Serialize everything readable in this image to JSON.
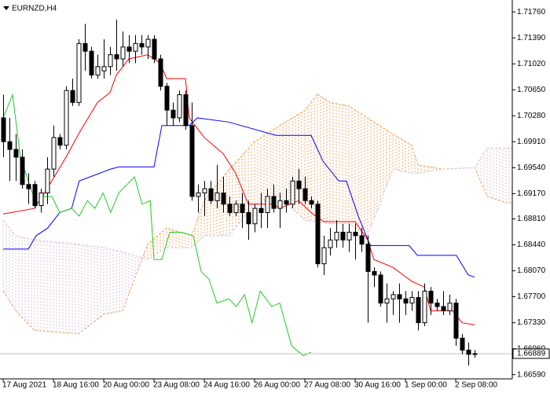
{
  "chart_data": {
    "type": "candlestick",
    "title": "EURNZD,H4",
    "ylim": [
      1.6653,
      1.7193
    ],
    "yticks": [
      {
        "value": 1.7176,
        "label": "1.71760"
      },
      {
        "value": 1.7139,
        "label": "1.71390"
      },
      {
        "value": 1.7102,
        "label": "1.71020"
      },
      {
        "value": 1.7065,
        "label": "1.70650"
      },
      {
        "value": 1.7028,
        "label": "1.70280"
      },
      {
        "value": 1.6991,
        "label": "1.69910"
      },
      {
        "value": 1.6954,
        "label": "1.69540"
      },
      {
        "value": 1.6917,
        "label": "1.69170"
      },
      {
        "value": 1.6881,
        "label": "1.68810"
      },
      {
        "value": 1.6844,
        "label": "1.68440"
      },
      {
        "value": 1.6807,
        "label": "1.68070"
      },
      {
        "value": 1.677,
        "label": "1.67700"
      },
      {
        "value": 1.6733,
        "label": "1.67330"
      },
      {
        "value": 1.6696,
        "label": "1.66960"
      },
      {
        "value": 1.6659,
        "label": "1.66590"
      }
    ],
    "xticks": [
      {
        "value": 0,
        "label": "17 Aug 2021"
      },
      {
        "value": 8,
        "label": "18 Aug 16:00"
      },
      {
        "value": 16,
        "label": "20 Aug 00:00"
      },
      {
        "value": 24,
        "label": "23 Aug 08:00"
      },
      {
        "value": 32,
        "label": "24 Aug 16:00"
      },
      {
        "value": 40,
        "label": "26 Aug 00:00"
      },
      {
        "value": 48,
        "label": "27 Aug 08:00"
      },
      {
        "value": 56,
        "label": "30 Aug 16:00"
      },
      {
        "value": 64,
        "label": "1 Sep 00:00"
      },
      {
        "value": 72,
        "label": "2 Sep 08:00"
      }
    ],
    "last_price": 1.66889,
    "candles": {
      "bull_color": "#ffffff",
      "bear_color": "#000000",
      "edge_color": "#000000",
      "open": [
        1.7025,
        1.6991,
        1.698,
        1.6969,
        1.693,
        1.693,
        1.69,
        1.6918,
        1.6952,
        1.6997,
        1.6986,
        1.7064,
        1.7047,
        1.7131,
        1.712,
        1.7086,
        1.7092,
        1.7098,
        1.7115,
        1.7109,
        1.7126,
        1.712,
        1.7131,
        1.7126,
        1.7137,
        1.7109,
        1.707,
        1.7036,
        1.7025,
        1.7058,
        1.7014,
        1.6913,
        1.6918,
        1.6924,
        1.6907,
        1.6918,
        1.6902,
        1.689,
        1.6902,
        1.689,
        1.6874,
        1.6896,
        1.689,
        1.6913,
        1.6896,
        1.6907,
        1.6902,
        1.6935,
        1.6924,
        1.6907,
        1.6902,
        1.6817,
        1.684,
        1.6851,
        1.6862,
        1.6851,
        1.6862,
        1.6857,
        1.6845,
        1.6806,
        1.6801,
        1.6761,
        1.6767,
        1.6773,
        1.6767,
        1.6761,
        1.6769,
        1.6733,
        1.6778,
        1.6761,
        1.6756,
        1.675,
        1.6761,
        1.6711,
        1.6694,
        1.6688
      ],
      "high": [
        1.7058,
        1.7025,
        1.7002,
        1.698,
        1.6946,
        1.6935,
        1.6924,
        1.6969,
        1.7014,
        1.7002,
        1.707,
        1.7081,
        1.7137,
        1.7159,
        1.7126,
        1.7115,
        1.7137,
        1.7126,
        1.7165,
        1.7148,
        1.7143,
        1.7143,
        1.7143,
        1.7143,
        1.7143,
        1.7115,
        1.7075,
        1.7047,
        1.7064,
        1.7064,
        1.7047,
        1.693,
        1.6935,
        1.6935,
        1.6958,
        1.6941,
        1.6913,
        1.6907,
        1.6918,
        1.6907,
        1.6902,
        1.6918,
        1.6924,
        1.693,
        1.6918,
        1.6924,
        1.6941,
        1.6952,
        1.6941,
        1.6913,
        1.6907,
        1.6857,
        1.6868,
        1.6879,
        1.6874,
        1.6874,
        1.6874,
        1.6868,
        1.6857,
        1.6812,
        1.6806,
        1.6789,
        1.6778,
        1.6789,
        1.6778,
        1.6778,
        1.6778,
        1.6789,
        1.6784,
        1.6767,
        1.6778,
        1.6773,
        1.6767,
        1.6717,
        1.6705,
        1.6694
      ],
      "low": [
        1.6969,
        1.6935,
        1.6935,
        1.6924,
        1.6902,
        1.6896,
        1.689,
        1.6902,
        1.6941,
        1.698,
        1.698,
        1.7042,
        1.7042,
        1.7092,
        1.7081,
        1.7081,
        1.7081,
        1.7086,
        1.7092,
        1.7098,
        1.7103,
        1.7103,
        1.7115,
        1.7109,
        1.7103,
        1.7064,
        1.7014,
        1.7014,
        1.7019,
        1.7008,
        1.6907,
        1.689,
        1.6885,
        1.6902,
        1.6896,
        1.689,
        1.6885,
        1.6885,
        1.6868,
        1.6851,
        1.6862,
        1.6868,
        1.6868,
        1.689,
        1.6868,
        1.689,
        1.6896,
        1.6902,
        1.6902,
        1.6896,
        1.6812,
        1.6801,
        1.6829,
        1.684,
        1.684,
        1.6834,
        1.6823,
        1.6834,
        1.6733,
        1.6784,
        1.6756,
        1.6733,
        1.6744,
        1.6733,
        1.6744,
        1.675,
        1.6722,
        1.6728,
        1.6744,
        1.675,
        1.6744,
        1.6744,
        1.67,
        1.6688,
        1.6672,
        1.6683
      ],
      "close": [
        1.6991,
        1.698,
        1.6969,
        1.693,
        1.6924,
        1.69,
        1.6918,
        1.6952,
        1.6997,
        1.6986,
        1.7064,
        1.7047,
        1.7131,
        1.712,
        1.7086,
        1.7098,
        1.7098,
        1.7115,
        1.7109,
        1.7126,
        1.712,
        1.7131,
        1.7126,
        1.7137,
        1.7109,
        1.707,
        1.7036,
        1.7025,
        1.7058,
        1.7014,
        1.6913,
        1.6918,
        1.6924,
        1.6907,
        1.6918,
        1.6902,
        1.689,
        1.6902,
        1.689,
        1.6874,
        1.6896,
        1.689,
        1.6913,
        1.6896,
        1.6907,
        1.6902,
        1.6935,
        1.6924,
        1.6907,
        1.6902,
        1.6817,
        1.684,
        1.6851,
        1.6862,
        1.6851,
        1.6862,
        1.6857,
        1.6845,
        1.6806,
        1.6801,
        1.6761,
        1.6767,
        1.6773,
        1.6767,
        1.6761,
        1.6769,
        1.6733,
        1.6778,
        1.6761,
        1.6756,
        1.675,
        1.6761,
        1.6711,
        1.6694,
        1.6688,
        1.66889
      ]
    },
    "lines": [
      {
        "color": "#ff0000",
        "x": [
          0,
          5,
          7,
          10,
          12,
          15,
          17,
          18,
          20,
          23,
          25,
          26,
          29,
          29.6,
          32,
          35,
          37,
          39,
          43,
          44,
          47,
          49,
          51,
          56,
          58,
          59,
          62,
          65,
          67,
          68,
          71.5,
          73,
          75
        ],
        "values": [
          1.6888,
          1.6896,
          1.6924,
          1.6969,
          1.7002,
          1.7047,
          1.7061,
          1.7086,
          1.7109,
          1.7115,
          1.7103,
          1.7081,
          1.7081,
          1.7025,
          1.6997,
          1.6974,
          1.6946,
          1.6902,
          1.6902,
          1.6896,
          1.6907,
          1.689,
          1.6877,
          1.6877,
          1.6851,
          1.6823,
          1.6812,
          1.6792,
          1.6784,
          1.675,
          1.675,
          1.6733,
          1.673
        ]
      },
      {
        "color": "#0000ff",
        "x": [
          0,
          4,
          5.25,
          7.1,
          9,
          10.9,
          12.1,
          17.1,
          18.4,
          24,
          25.25,
          29.6,
          30.9,
          35.9,
          43.4,
          49,
          50.9,
          53.4,
          54.6,
          56.5,
          58.4,
          64.6,
          65.9,
          72.1,
          74,
          75
        ],
        "values": [
          1.6838,
          1.6838,
          1.6857,
          1.6868,
          1.689,
          1.6896,
          1.6935,
          1.6952,
          1.6955,
          1.6955,
          1.7014,
          1.7014,
          1.7025,
          1.7019,
          1.7,
          1.7,
          1.6963,
          1.6935,
          1.6935,
          1.6885,
          1.6843,
          1.6843,
          1.6829,
          1.6829,
          1.6801,
          1.6798
        ]
      },
      {
        "color": "#22cc22",
        "x": [
          0,
          1.5,
          2.75,
          4,
          5.25,
          6.5,
          7.75,
          9,
          10.9,
          12.1,
          13.4,
          14.6,
          15.9,
          17.1,
          18.4,
          20.9,
          22.1,
          23.4,
          24,
          25.25,
          26.5,
          28.4,
          30.25,
          31.5,
          32.75,
          34,
          35.9,
          37.1,
          38.4,
          39.6,
          40.9,
          42.75,
          44,
          45.9,
          47.75,
          49
        ],
        "values": [
          1.7025,
          1.7058,
          1.6969,
          1.6935,
          1.6902,
          1.6913,
          1.6913,
          1.689,
          1.6896,
          1.6885,
          1.6907,
          1.6896,
          1.6918,
          1.689,
          1.6918,
          1.6941,
          1.6902,
          1.6907,
          1.6823,
          1.6823,
          1.6862,
          1.6862,
          1.6857,
          1.6806,
          1.6795,
          1.6761,
          1.6767,
          1.6756,
          1.6773,
          1.6733,
          1.6778,
          1.6756,
          1.6761,
          1.67,
          1.6686,
          1.6691
        ]
      }
    ],
    "cloud": {
      "x": [
        0,
        2,
        5,
        12,
        16,
        19,
        23,
        26,
        30,
        32,
        36,
        40,
        44,
        48,
        50,
        52,
        55,
        58,
        62,
        65,
        66,
        70,
        75,
        77,
        80,
        81
      ],
      "span_a": {
        "color": "#f4a460",
        "values": [
          1.6778,
          1.675,
          1.6722,
          1.6717,
          1.6745,
          1.675,
          1.6845,
          1.6868,
          1.6857,
          1.6907,
          1.6952,
          1.6991,
          1.7014,
          1.7036,
          1.7059,
          1.7047,
          1.7042,
          1.7025,
          1.7002,
          1.6986,
          1.6958,
          1.6952,
          1.6954,
          1.6913,
          1.6904,
          1.6904
        ]
      },
      "span_b": {
        "color": "#d8bfd8",
        "values": [
          1.6879,
          1.6857,
          1.6851,
          1.6845,
          1.684,
          1.6834,
          1.6823,
          1.684,
          1.684,
          1.6857,
          1.6857,
          1.6902,
          1.6913,
          1.6879,
          1.6877,
          1.6874,
          1.6874,
          1.6857,
          1.6952,
          1.6946,
          1.6946,
          1.6952,
          1.6954,
          1.6982,
          1.6982,
          1.6982
        ]
      }
    }
  }
}
